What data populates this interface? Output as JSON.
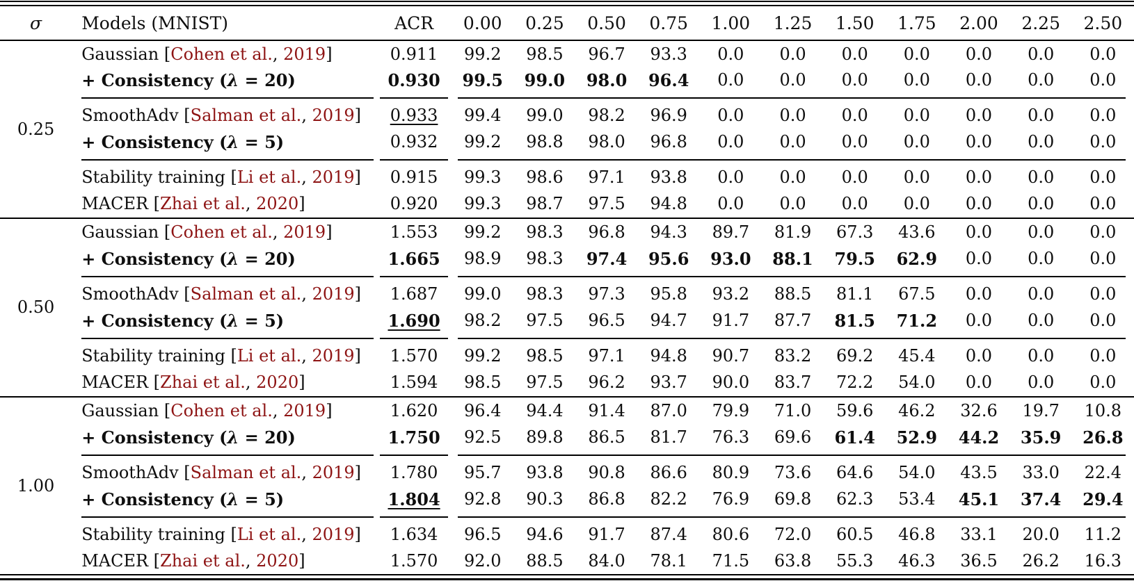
{
  "page": {
    "background": "#ffffff",
    "text_color": "#0e0e0e",
    "citation_color": "#8e1414"
  },
  "table": {
    "header": {
      "sigma": "σ",
      "models": "Models (MNIST)",
      "acr": "ACR",
      "radii": [
        "0.00",
        "0.25",
        "0.50",
        "0.75",
        "1.00",
        "1.25",
        "1.50",
        "1.75",
        "2.00",
        "2.25",
        "2.50"
      ]
    },
    "blocks": [
      {
        "sigma": "0.25",
        "rows": [
          {
            "label": "Gaussian",
            "cite": {
              "authors": "Cohen et al.",
              "year": "2019"
            },
            "label_bold": false,
            "acr": "0.911",
            "acr_bold": false,
            "acr_underline": false,
            "values": [
              "99.2",
              "98.5",
              "96.7",
              "93.3",
              "0.0",
              "0.0",
              "0.0",
              "0.0",
              "0.0",
              "0.0",
              "0.0"
            ],
            "bold_values": []
          },
          {
            "label": "+ Consistency (λ = 20)",
            "cite": null,
            "label_bold": true,
            "acr": "0.930",
            "acr_bold": true,
            "acr_underline": false,
            "values": [
              "99.5",
              "99.0",
              "98.0",
              "96.4",
              "0.0",
              "0.0",
              "0.0",
              "0.0",
              "0.0",
              "0.0",
              "0.0"
            ],
            "bold_values": [
              0,
              1,
              2,
              3
            ]
          },
          {
            "label": "SmoothAdv",
            "cite": {
              "authors": "Salman et al.",
              "year": "2019"
            },
            "label_bold": false,
            "acr": "0.933",
            "acr_bold": false,
            "acr_underline": true,
            "values": [
              "99.4",
              "99.0",
              "98.2",
              "96.9",
              "0.0",
              "0.0",
              "0.0",
              "0.0",
              "0.0",
              "0.0",
              "0.0"
            ],
            "bold_values": []
          },
          {
            "label": "+ Consistency (λ = 5)",
            "cite": null,
            "label_bold": true,
            "acr": "0.932",
            "acr_bold": false,
            "acr_underline": false,
            "values": [
              "99.2",
              "98.8",
              "98.0",
              "96.8",
              "0.0",
              "0.0",
              "0.0",
              "0.0",
              "0.0",
              "0.0",
              "0.0"
            ],
            "bold_values": []
          },
          {
            "label": "Stability training",
            "cite": {
              "authors": "Li et al.",
              "year": "2019"
            },
            "label_bold": false,
            "acr": "0.915",
            "acr_bold": false,
            "acr_underline": false,
            "values": [
              "99.3",
              "98.6",
              "97.1",
              "93.8",
              "0.0",
              "0.0",
              "0.0",
              "0.0",
              "0.0",
              "0.0",
              "0.0"
            ],
            "bold_values": []
          },
          {
            "label": "MACER",
            "cite": {
              "authors": "Zhai et al.",
              "year": "2020"
            },
            "label_bold": false,
            "acr": "0.920",
            "acr_bold": false,
            "acr_underline": false,
            "values": [
              "99.3",
              "98.7",
              "97.5",
              "94.8",
              "0.0",
              "0.0",
              "0.0",
              "0.0",
              "0.0",
              "0.0",
              "0.0"
            ],
            "bold_values": []
          }
        ]
      },
      {
        "sigma": "0.50",
        "rows": [
          {
            "label": "Gaussian",
            "cite": {
              "authors": "Cohen et al.",
              "year": "2019"
            },
            "label_bold": false,
            "acr": "1.553",
            "acr_bold": false,
            "acr_underline": false,
            "values": [
              "99.2",
              "98.3",
              "96.8",
              "94.3",
              "89.7",
              "81.9",
              "67.3",
              "43.6",
              "0.0",
              "0.0",
              "0.0"
            ],
            "bold_values": []
          },
          {
            "label": "+ Consistency (λ = 20)",
            "cite": null,
            "label_bold": true,
            "acr": "1.665",
            "acr_bold": true,
            "acr_underline": false,
            "values": [
              "98.9",
              "98.3",
              "97.4",
              "95.6",
              "93.0",
              "88.1",
              "79.5",
              "62.9",
              "0.0",
              "0.0",
              "0.0"
            ],
            "bold_values": [
              2,
              3,
              4,
              5,
              6,
              7
            ]
          },
          {
            "label": "SmoothAdv",
            "cite": {
              "authors": "Salman et al.",
              "year": "2019"
            },
            "label_bold": false,
            "acr": "1.687",
            "acr_bold": false,
            "acr_underline": false,
            "values": [
              "99.0",
              "98.3",
              "97.3",
              "95.8",
              "93.2",
              "88.5",
              "81.1",
              "67.5",
              "0.0",
              "0.0",
              "0.0"
            ],
            "bold_values": []
          },
          {
            "label": "+ Consistency (λ = 5)",
            "cite": null,
            "label_bold": true,
            "acr": "1.690",
            "acr_bold": true,
            "acr_underline": true,
            "values": [
              "98.2",
              "97.5",
              "96.5",
              "94.7",
              "91.7",
              "87.7",
              "81.5",
              "71.2",
              "0.0",
              "0.0",
              "0.0"
            ],
            "bold_values": [
              6,
              7
            ]
          },
          {
            "label": "Stability training",
            "cite": {
              "authors": "Li et al.",
              "year": "2019"
            },
            "label_bold": false,
            "acr": "1.570",
            "acr_bold": false,
            "acr_underline": false,
            "values": [
              "99.2",
              "98.5",
              "97.1",
              "94.8",
              "90.7",
              "83.2",
              "69.2",
              "45.4",
              "0.0",
              "0.0",
              "0.0"
            ],
            "bold_values": []
          },
          {
            "label": "MACER",
            "cite": {
              "authors": "Zhai et al.",
              "year": "2020"
            },
            "label_bold": false,
            "acr": "1.594",
            "acr_bold": false,
            "acr_underline": false,
            "values": [
              "98.5",
              "97.5",
              "96.2",
              "93.7",
              "90.0",
              "83.7",
              "72.2",
              "54.0",
              "0.0",
              "0.0",
              "0.0"
            ],
            "bold_values": []
          }
        ]
      },
      {
        "sigma": "1.00",
        "rows": [
          {
            "label": "Gaussian",
            "cite": {
              "authors": "Cohen et al.",
              "year": "2019"
            },
            "label_bold": false,
            "acr": "1.620",
            "acr_bold": false,
            "acr_underline": false,
            "values": [
              "96.4",
              "94.4",
              "91.4",
              "87.0",
              "79.9",
              "71.0",
              "59.6",
              "46.2",
              "32.6",
              "19.7",
              "10.8"
            ],
            "bold_values": []
          },
          {
            "label": "+ Consistency (λ = 20)",
            "cite": null,
            "label_bold": true,
            "acr": "1.750",
            "acr_bold": true,
            "acr_underline": false,
            "values": [
              "92.5",
              "89.8",
              "86.5",
              "81.7",
              "76.3",
              "69.6",
              "61.4",
              "52.9",
              "44.2",
              "35.9",
              "26.8"
            ],
            "bold_values": [
              6,
              7,
              8,
              9,
              10
            ]
          },
          {
            "label": "SmoothAdv",
            "cite": {
              "authors": "Salman et al.",
              "year": "2019"
            },
            "label_bold": false,
            "acr": "1.780",
            "acr_bold": false,
            "acr_underline": false,
            "values": [
              "95.7",
              "93.8",
              "90.8",
              "86.6",
              "80.9",
              "73.6",
              "64.6",
              "54.0",
              "43.5",
              "33.0",
              "22.4"
            ],
            "bold_values": []
          },
          {
            "label": "+ Consistency (λ = 5)",
            "cite": null,
            "label_bold": true,
            "acr": "1.804",
            "acr_bold": true,
            "acr_underline": true,
            "values": [
              "92.8",
              "90.3",
              "86.8",
              "82.2",
              "76.9",
              "69.8",
              "62.3",
              "53.4",
              "45.1",
              "37.4",
              "29.4"
            ],
            "bold_values": [
              8,
              9,
              10
            ]
          },
          {
            "label": "Stability training",
            "cite": {
              "authors": "Li et al.",
              "year": "2019"
            },
            "label_bold": false,
            "acr": "1.634",
            "acr_bold": false,
            "acr_underline": false,
            "values": [
              "96.5",
              "94.6",
              "91.7",
              "87.4",
              "80.6",
              "72.0",
              "60.5",
              "46.8",
              "33.1",
              "20.0",
              "11.2"
            ],
            "bold_values": []
          },
          {
            "label": "MACER",
            "cite": {
              "authors": "Zhai et al.",
              "year": "2020"
            },
            "label_bold": false,
            "acr": "1.570",
            "acr_bold": false,
            "acr_underline": false,
            "values": [
              "92.0",
              "88.5",
              "84.0",
              "78.1",
              "71.5",
              "63.8",
              "55.3",
              "46.3",
              "36.5",
              "26.2",
              "16.3"
            ],
            "bold_values": []
          }
        ]
      }
    ]
  }
}
